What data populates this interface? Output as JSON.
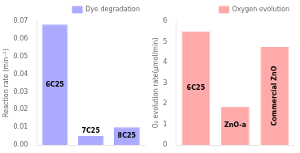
{
  "chart_data": [
    {
      "type": "bar",
      "categories": [
        "6C25",
        "7C25",
        "8C25"
      ],
      "series": [
        {
          "name": "Dye degradation",
          "color": "#aaaaff",
          "values": [
            0.068,
            0.005,
            0.01
          ]
        }
      ],
      "ylabel": "Reaction rate (min⁻¹)",
      "ylim": [
        0,
        0.07
      ],
      "yticks": [
        {
          "value": 0,
          "label": "0.00"
        },
        0.01,
        0.02,
        0.03,
        0.04,
        0.05,
        0.06,
        0.07
      ],
      "legend": "upper right",
      "grid": false,
      "tick_labels": "y"
    },
    {
      "type": "bar",
      "categories": [
        "6C25",
        "ZnO-a",
        "Commercial ZnO"
      ],
      "series": [
        {
          "name": "Oxygen evolution",
          "color": "#ffaaaa",
          "values": [
            5.5,
            1.85,
            4.75
          ]
        }
      ],
      "ylabel": "O₂ evolution rate(μmol/min)",
      "ylim": [
        0,
        6
      ],
      "yticks": [
        0,
        1,
        2,
        3,
        4,
        5,
        6
      ],
      "legend": "upper right",
      "grid": false,
      "tick_labels": "y"
    }
  ]
}
